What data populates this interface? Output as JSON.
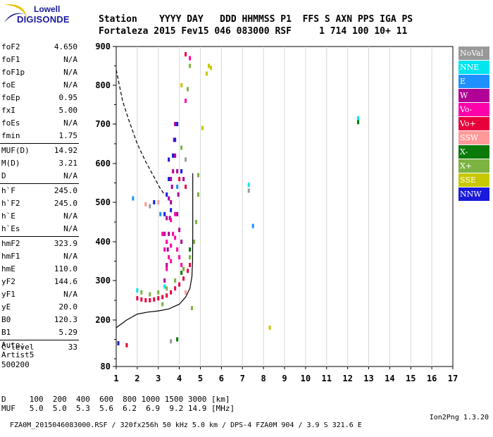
{
  "logo": {
    "line1": "Lowell",
    "line2": "DIGISONDE"
  },
  "header": {
    "row1": "Station    YYYY DAY   DDD HHMMSS P1  FFS S AXN PPS IGA PS",
    "row2": "Fortaleza 2015 Fev15 046 083000 RSF     1 714 100 10+ 11"
  },
  "params": [
    [
      [
        "foF2",
        "4.650"
      ],
      [
        "foF1",
        "N/A"
      ],
      [
        "foF1p",
        "N/A"
      ],
      [
        "foE",
        "N/A"
      ],
      [
        "foEp",
        "0.95"
      ],
      [
        "fxI",
        "5.00"
      ],
      [
        "foEs",
        "N/A"
      ],
      [
        "fmin",
        "1.75"
      ]
    ],
    [
      [
        "MUF(D)",
        "14.92"
      ],
      [
        "M(D)",
        "3.21"
      ],
      [
        "D",
        "N/A"
      ]
    ],
    [
      [
        "h`F",
        "245.0"
      ],
      [
        "h`F2",
        "245.0"
      ],
      [
        "h`E",
        "N/A"
      ],
      [
        "h`Es",
        "N/A"
      ]
    ],
    [
      [
        "hmF2",
        "323.9"
      ],
      [
        "hmF1",
        "N/A"
      ],
      [
        "hmE",
        "110.0"
      ],
      [
        "yF2",
        "144.6"
      ],
      [
        "yF1",
        "N/A"
      ],
      [
        "yE",
        "20.0"
      ],
      [
        "B0",
        "120.3"
      ],
      [
        "B1",
        "5.29"
      ]
    ],
    [
      [
        "C-level",
        "33"
      ]
    ]
  ],
  "auto": {
    "line1": "Auto:",
    "line2": "Artist5",
    "line3": "500200"
  },
  "legend": [
    {
      "label": "NoVal",
      "color": "#999999"
    },
    {
      "label": "NNE",
      "color": "#00e5ee"
    },
    {
      "label": "E",
      "color": "#1e90ff"
    },
    {
      "label": "W",
      "color": "#b00096"
    },
    {
      "label": "Vo-",
      "color": "#ff00aa"
    },
    {
      "label": "Vo+",
      "color": "#e8003c"
    },
    {
      "label": "SSW",
      "color": "#ff9999"
    },
    {
      "label": "X-",
      "color": "#0a7a0a"
    },
    {
      "label": "X+",
      "color": "#7cb342"
    },
    {
      "label": "SSE",
      "color": "#c8c800"
    },
    {
      "label": "NNW",
      "color": "#1a1adc"
    }
  ],
  "footer": {
    "row1": "D     100  200  400  600  800 1000 1500 3000 [km]",
    "row2": "MUF   5.0  5.0  5.3  5.6  6.2  6.9  9.2 14.9 [MHz]"
  },
  "status": {
    "left": "FZA0M_2015046083000.RSF / 320fx256h 50 kHz 5.0 km / DPS-4 FZA0M 904 / 3.9 S 321.6 E",
    "right": "Ion2Png 1.3.20"
  },
  "chart_data": {
    "type": "scatter",
    "xlim": [
      1,
      17
    ],
    "ylim": [
      80,
      900
    ],
    "xticks": [
      1,
      2,
      3,
      4,
      5,
      6,
      7,
      8,
      9,
      10,
      11,
      12,
      13,
      14,
      15,
      16,
      17
    ],
    "yticks": [
      80,
      200,
      300,
      400,
      500,
      600,
      700,
      800,
      900
    ],
    "xlabel": "",
    "ylabel": "",
    "profile_curve": [
      [
        1.0,
        180
      ],
      [
        1.5,
        200
      ],
      [
        2.0,
        215
      ],
      [
        2.5,
        220
      ],
      [
        3.0,
        223
      ],
      [
        3.5,
        228
      ],
      [
        4.0,
        240
      ],
      [
        4.3,
        258
      ],
      [
        4.5,
        280
      ],
      [
        4.6,
        310
      ],
      [
        4.63,
        350
      ],
      [
        4.64,
        420
      ],
      [
        4.64,
        500
      ],
      [
        4.64,
        575
      ]
    ],
    "muf_curve": [
      [
        1.0,
        840
      ],
      [
        1.3,
        760
      ],
      [
        1.6,
        710
      ],
      [
        2.0,
        650
      ],
      [
        2.4,
        605
      ],
      [
        2.8,
        565
      ],
      [
        3.1,
        535
      ],
      [
        3.3,
        520
      ]
    ],
    "echo_clusters": [
      {
        "direction": "W",
        "color": "#b00096",
        "points": [
          [
            3.3,
            300
          ],
          [
            3.4,
            340
          ],
          [
            3.45,
            380
          ],
          [
            3.5,
            420
          ],
          [
            3.55,
            460
          ],
          [
            3.6,
            500
          ],
          [
            3.65,
            540
          ],
          [
            3.7,
            580
          ],
          [
            3.8,
            620
          ],
          [
            3.9,
            470
          ],
          [
            4.0,
            430
          ],
          [
            4.1,
            400
          ],
          [
            3.3,
            420
          ],
          [
            3.4,
            460
          ],
          [
            3.5,
            510
          ],
          [
            3.6,
            560
          ],
          [
            3.7,
            620
          ],
          [
            3.75,
            660
          ],
          [
            3.8,
            700
          ],
          [
            4.2,
            560
          ],
          [
            3.95,
            520
          ],
          [
            3.9,
            580
          ]
        ]
      },
      {
        "direction": "Vo-",
        "color": "#ff00aa",
        "points": [
          [
            3.3,
            380
          ],
          [
            3.4,
            400
          ],
          [
            3.5,
            360
          ],
          [
            3.6,
            390
          ],
          [
            3.7,
            420
          ],
          [
            3.8,
            410
          ],
          [
            3.9,
            380
          ],
          [
            4.0,
            360
          ],
          [
            4.1,
            340
          ],
          [
            3.4,
            330
          ],
          [
            3.6,
            350
          ],
          [
            4.2,
            330
          ],
          [
            3.2,
            420
          ],
          [
            3.6,
            455
          ],
          [
            3.8,
            470
          ],
          [
            4.3,
            760
          ],
          [
            4.5,
            870
          ]
        ]
      },
      {
        "direction": "Vo+",
        "color": "#e8003c",
        "points": [
          [
            2.0,
            255
          ],
          [
            2.2,
            252
          ],
          [
            2.4,
            250
          ],
          [
            2.6,
            250
          ],
          [
            2.8,
            252
          ],
          [
            3.0,
            255
          ],
          [
            3.2,
            258
          ],
          [
            3.4,
            262
          ],
          [
            3.6,
            270
          ],
          [
            3.8,
            280
          ],
          [
            4.0,
            290
          ],
          [
            4.2,
            305
          ],
          [
            4.4,
            325
          ],
          [
            4.5,
            340
          ],
          [
            4.3,
            880
          ],
          [
            1.5,
            135
          ],
          [
            4.0,
            560
          ],
          [
            4.3,
            540
          ]
        ]
      },
      {
        "direction": "X+",
        "color": "#7cb342",
        "points": [
          [
            2.2,
            270
          ],
          [
            2.6,
            265
          ],
          [
            3.0,
            270
          ],
          [
            3.4,
            280
          ],
          [
            3.8,
            300
          ],
          [
            4.2,
            330
          ],
          [
            4.5,
            360
          ],
          [
            4.7,
            400
          ],
          [
            4.8,
            450
          ],
          [
            4.9,
            520
          ],
          [
            4.9,
            570
          ],
          [
            4.6,
            230
          ],
          [
            4.4,
            790
          ],
          [
            4.5,
            850
          ],
          [
            4.1,
            640
          ],
          [
            3.2,
            240
          ]
        ]
      },
      {
        "direction": "NNW",
        "color": "#1a1adc",
        "points": [
          [
            3.4,
            520
          ],
          [
            3.5,
            560
          ],
          [
            3.7,
            620
          ],
          [
            3.8,
            660
          ],
          [
            3.9,
            700
          ],
          [
            3.3,
            470
          ],
          [
            3.6,
            480
          ],
          [
            2.8,
            500
          ],
          [
            3.5,
            610
          ],
          [
            4.1,
            580
          ],
          [
            1.1,
            140
          ]
        ]
      },
      {
        "direction": "E",
        "color": "#1e90ff",
        "points": [
          [
            7.5,
            440
          ],
          [
            1.8,
            510
          ],
          [
            3.1,
            470
          ],
          [
            3.9,
            540
          ]
        ]
      },
      {
        "direction": "NNE",
        "color": "#00e5ee",
        "points": [
          [
            7.3,
            545
          ],
          [
            12.5,
            715
          ],
          [
            2.0,
            275
          ],
          [
            3.3,
            285
          ]
        ]
      },
      {
        "direction": "X-",
        "color": "#0a7a0a",
        "points": [
          [
            12.5,
            705
          ],
          [
            4.5,
            380
          ],
          [
            4.1,
            320
          ],
          [
            3.9,
            150
          ]
        ]
      },
      {
        "direction": "SSE",
        "color": "#c8c800",
        "points": [
          [
            5.4,
            850
          ],
          [
            5.5,
            845
          ],
          [
            5.3,
            830
          ],
          [
            8.3,
            180
          ],
          [
            5.1,
            690
          ],
          [
            4.1,
            800
          ]
        ]
      },
      {
        "direction": "SSW",
        "color": "#ff9999",
        "points": [
          [
            3.0,
            500
          ],
          [
            4.3,
            270
          ],
          [
            2.4,
            495
          ]
        ]
      },
      {
        "direction": "NoVal",
        "color": "#999999",
        "points": [
          [
            7.3,
            530
          ],
          [
            4.3,
            610
          ],
          [
            2.6,
            490
          ],
          [
            3.6,
            145
          ]
        ]
      }
    ]
  }
}
